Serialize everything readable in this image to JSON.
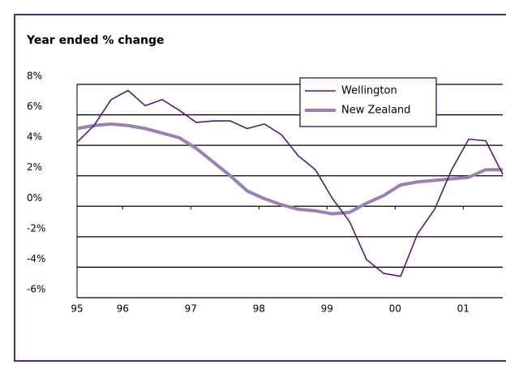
{
  "chart_data": {
    "type": "line",
    "subtitle": "Year ended % change",
    "x": [
      1995.33,
      1995.58,
      1995.83,
      1996.08,
      1996.33,
      1996.58,
      1996.83,
      1997.08,
      1997.33,
      1997.58,
      1997.83,
      1998.08,
      1998.33,
      1998.58,
      1998.83,
      1999.08,
      1999.33,
      1999.58,
      1999.83,
      2000.08,
      2000.33,
      2000.58,
      2000.83,
      2001.08,
      2001.33,
      2001.58
    ],
    "series": [
      {
        "name": "Wellington",
        "color": "#5a1a6b",
        "values": [
          4.2,
          5.3,
          7.0,
          7.6,
          6.6,
          7.0,
          6.3,
          5.5,
          5.6,
          5.6,
          5.1,
          5.4,
          4.7,
          3.3,
          2.4,
          0.5,
          -1.0,
          -3.5,
          -4.4,
          -4.6,
          -1.8,
          -0.2,
          2.4,
          4.4,
          4.3,
          2.1
        ]
      },
      {
        "name": "New Zealand",
        "color": "#9d80b2",
        "values": [
          5.1,
          5.3,
          5.4,
          5.3,
          5.1,
          4.8,
          4.5,
          3.8,
          2.9,
          2.0,
          1.0,
          0.5,
          0.1,
          -0.2,
          -0.3,
          -0.5,
          -0.4,
          0.2,
          0.7,
          1.4,
          1.6,
          1.7,
          1.8,
          1.9,
          2.4,
          2.4
        ]
      }
    ],
    "xlim": [
      1995.33,
      2001.58
    ],
    "xticks": [
      {
        "value": 1995.33,
        "label": "95"
      },
      {
        "value": 1996,
        "label": "96"
      },
      {
        "value": 1997,
        "label": "97"
      },
      {
        "value": 1998,
        "label": "98"
      },
      {
        "value": 1999,
        "label": "99"
      },
      {
        "value": 2000,
        "label": "00"
      },
      {
        "value": 2001,
        "label": "01"
      }
    ],
    "ylim": [
      -6,
      8
    ],
    "yticks": [
      {
        "value": -6,
        "label": "-6%"
      },
      {
        "value": -4,
        "label": "-4%"
      },
      {
        "value": -2,
        "label": "-2%"
      },
      {
        "value": 0,
        "label": "0%"
      },
      {
        "value": 2,
        "label": "2%"
      },
      {
        "value": 4,
        "label": "4%"
      },
      {
        "value": 6,
        "label": "6%"
      },
      {
        "value": 8,
        "label": "8%"
      }
    ],
    "grid": true
  }
}
